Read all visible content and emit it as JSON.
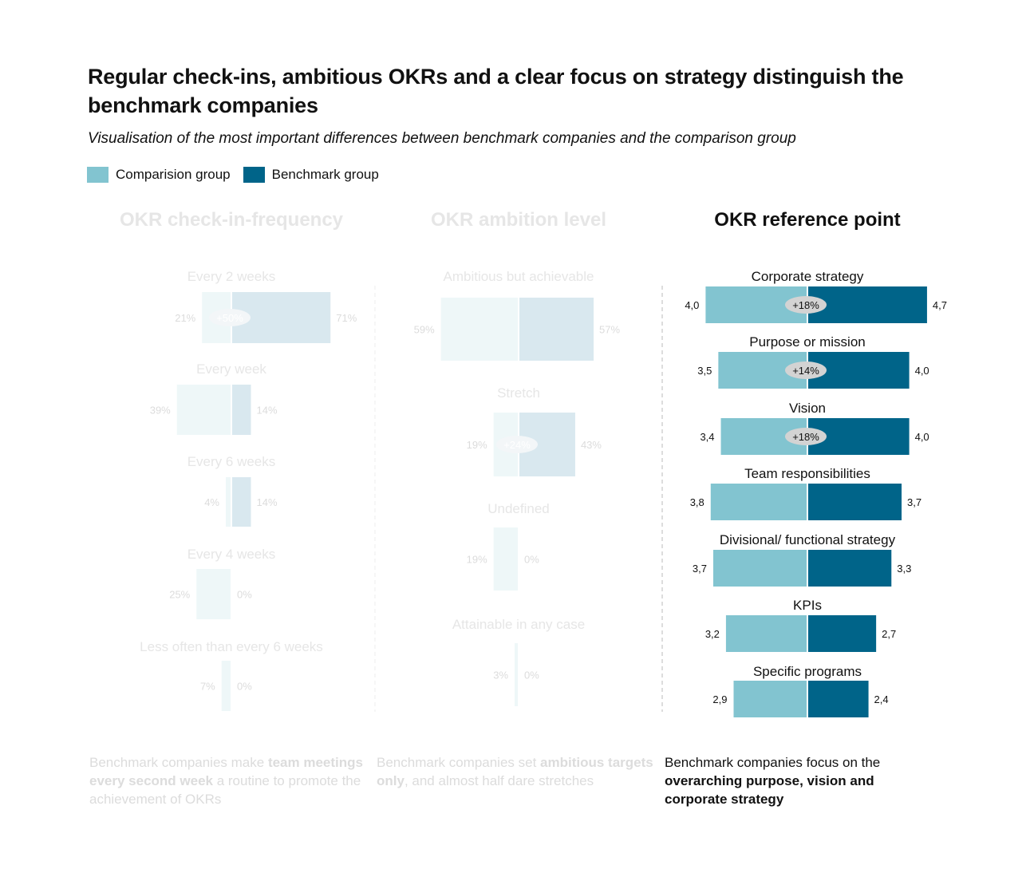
{
  "title": "Regular check-ins, ambitious OKRs and a clear focus on strategy distinguish the benchmark companies",
  "subtitle": "Visualisation of the most important differences between benchmark companies and the comparison group",
  "colors": {
    "comparison": "#82c4d0",
    "benchmark": "#006489",
    "faded_comparison": "#eef7f8",
    "faded_benchmark": "#d9e8ef",
    "faded_text": "#dcdcdc",
    "faded_label": "#e6e6e6"
  },
  "chart_data": [
    {
      "type": "bar",
      "title": "OKR check-in-frequency",
      "faded": true,
      "unit": "%",
      "legend": [
        "Comparision group",
        "Benchmark group"
      ],
      "series": [
        {
          "name": "Comparision group",
          "values": [
            21,
            39,
            4,
            25,
            7
          ]
        },
        {
          "name": "Benchmark group",
          "values": [
            71,
            14,
            14,
            0,
            0
          ]
        }
      ],
      "categories": [
        "Every 2 weeks",
        "Every week",
        "Every 6 weeks",
        "Every 4 weeks",
        "Less often than every 6 weeks"
      ],
      "badges": [
        "+50%",
        "",
        "",
        "",
        ""
      ],
      "value_labels_comp": [
        "21%",
        "39%",
        "4%",
        "25%",
        "7%"
      ],
      "value_labels_bench": [
        "71%",
        "14%",
        "14%",
        "0%",
        "0%"
      ],
      "note": {
        "pre": "Benchmark companies make ",
        "bold": "team meetings every second week",
        "post": " a routine to promote the achievement of OKRs"
      }
    },
    {
      "type": "bar",
      "title": "OKR ambition level",
      "faded": true,
      "unit": "%",
      "series": [
        {
          "name": "Comparision group",
          "values": [
            59,
            19,
            19,
            3
          ]
        },
        {
          "name": "Benchmark group",
          "values": [
            57,
            43,
            0,
            0
          ]
        }
      ],
      "categories": [
        "Ambitious but achievable",
        "Stretch",
        "Undefined",
        "Attainable in any case"
      ],
      "badges": [
        "",
        "+24%",
        "",
        ""
      ],
      "value_labels_comp": [
        "59%",
        "19%",
        "19%",
        "3%"
      ],
      "value_labels_bench": [
        "57%",
        "43%",
        "0%",
        "0%"
      ],
      "note": {
        "pre": "Benchmark companies set ",
        "bold": "ambitious targets only",
        "post": ", and almost half dare stretches"
      }
    },
    {
      "type": "bar",
      "title": "OKR reference point",
      "faded": false,
      "series": [
        {
          "name": "Comparision group",
          "values": [
            4.0,
            3.5,
            3.4,
            3.8,
            3.7,
            3.2,
            2.9
          ]
        },
        {
          "name": "Benchmark group",
          "values": [
            4.7,
            4.0,
            4.0,
            3.7,
            3.3,
            2.7,
            2.4
          ]
        }
      ],
      "categories": [
        "Corporate strategy",
        "Purpose or mission",
        "Vision",
        "Team responsibilities",
        "Divisional/ functional strategy",
        "KPIs",
        "Specific programs"
      ],
      "badges": [
        "+18%",
        "+14%",
        "+18%",
        "",
        "",
        "",
        ""
      ],
      "value_labels_comp": [
        "4,0",
        "3,5",
        "3,4",
        "3,8",
        "3,7",
        "3,2",
        "2,9"
      ],
      "value_labels_bench": [
        "4,7",
        "4,0",
        "4,0",
        "3,7",
        "3,3",
        "2,7",
        "2,4"
      ],
      "note": {
        "pre": "Benchmark companies focus on the ",
        "bold": "overarching purpose, vision and corporate strategy",
        "post": ""
      }
    }
  ]
}
